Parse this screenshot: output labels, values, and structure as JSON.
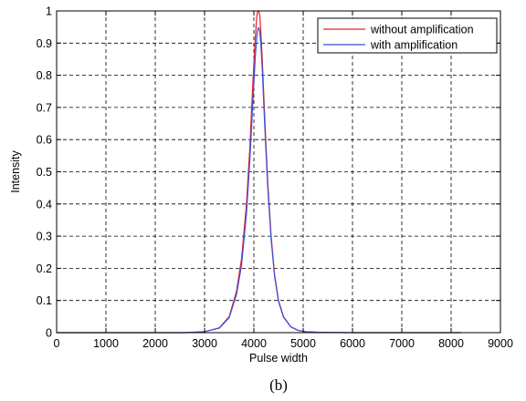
{
  "chart_data": {
    "type": "line",
    "title": "",
    "xlabel": "Pulse width",
    "ylabel": "Intensity",
    "xlim": [
      0,
      9000
    ],
    "ylim": [
      0,
      1
    ],
    "xticks": [
      "0",
      "1000",
      "2000",
      "3000",
      "4000",
      "5000",
      "6000",
      "7000",
      "8000",
      "9000"
    ],
    "yticks": [
      "0",
      "0.1",
      "0.2",
      "0.3",
      "0.4",
      "0.5",
      "0.6",
      "0.7",
      "0.8",
      "0.9",
      "1"
    ],
    "grid": true,
    "legend_position": "top-right",
    "caption": "(b)",
    "series": [
      {
        "name": "without amplification",
        "color": "#e8202a",
        "x": [
          0,
          2600,
          3000,
          3300,
          3500,
          3650,
          3750,
          3850,
          3920,
          3980,
          4030,
          4060,
          4080,
          4100,
          4120,
          4140,
          4170,
          4220,
          4280,
          4350,
          4420,
          4500,
          4600,
          4750,
          4900,
          5050,
          5300,
          6000,
          8200
        ],
        "y": [
          0,
          0,
          0.003,
          0.015,
          0.05,
          0.13,
          0.23,
          0.4,
          0.58,
          0.78,
          0.92,
          0.985,
          1.0,
          1.0,
          0.985,
          0.94,
          0.85,
          0.67,
          0.47,
          0.3,
          0.18,
          0.1,
          0.05,
          0.018,
          0.007,
          0.003,
          0.001,
          0,
          0
        ]
      },
      {
        "name": "with amplification",
        "color": "#3a4fd8",
        "x": [
          0,
          2600,
          3000,
          3300,
          3500,
          3650,
          3750,
          3850,
          3920,
          3980,
          4030,
          4060,
          4080,
          4100,
          4120,
          4140,
          4170,
          4220,
          4280,
          4350,
          4420,
          4500,
          4600,
          4750,
          4900,
          5050,
          5300,
          6000,
          8200
        ],
        "y": [
          0,
          0,
          0.003,
          0.014,
          0.047,
          0.12,
          0.21,
          0.37,
          0.54,
          0.72,
          0.86,
          0.92,
          0.945,
          0.948,
          0.935,
          0.9,
          0.82,
          0.645,
          0.455,
          0.29,
          0.175,
          0.097,
          0.048,
          0.018,
          0.007,
          0.003,
          0.001,
          0,
          0
        ]
      }
    ]
  }
}
